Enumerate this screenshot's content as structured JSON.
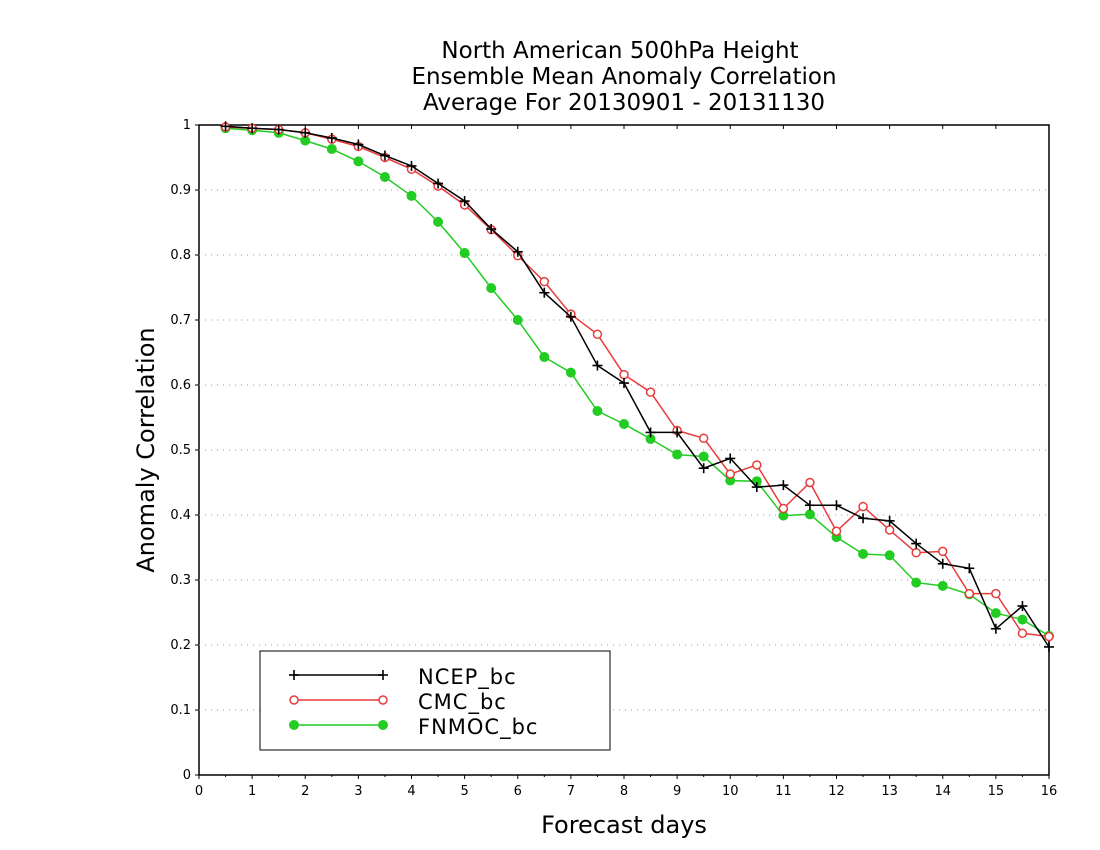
{
  "chart_data": {
    "type": "line",
    "title": [
      "North American 500hPa Height",
      "Ensemble Mean Anomaly Correlation",
      "Average For 20130901 - 20131130"
    ],
    "xlabel": "Forecast days",
    "ylabel": "Anomaly Correlation",
    "xlim": [
      0,
      16
    ],
    "ylim": [
      0,
      1
    ],
    "xticks": [
      "0",
      "1",
      "2",
      "3",
      "4",
      "5",
      "6",
      "7",
      "8",
      "9",
      "10",
      "11",
      "12",
      "13",
      "14",
      "15",
      "16"
    ],
    "yticks": [
      "0",
      "0.1",
      "0.2",
      "0.3",
      "0.4",
      "0.5",
      "0.6",
      "0.7",
      "0.8",
      "0.9",
      "1"
    ],
    "grid": "horizontal-dotted",
    "legend_position": "bottom-left",
    "x": [
      0.5,
      1,
      1.5,
      2,
      2.5,
      3,
      3.5,
      4,
      4.5,
      5,
      5.5,
      6,
      6.5,
      7,
      7.5,
      8,
      8.5,
      9,
      9.5,
      10,
      10.5,
      11,
      11.5,
      12,
      12.5,
      13,
      13.5,
      14,
      14.5,
      15,
      15.5,
      16
    ],
    "series": [
      {
        "name": "NCEP_bc",
        "color": "#000000",
        "marker": "plus",
        "values": [
          0.998,
          0.995,
          0.993,
          0.988,
          0.98,
          0.97,
          0.953,
          0.937,
          0.91,
          0.883,
          0.84,
          0.805,
          0.742,
          0.705,
          0.63,
          0.603,
          0.527,
          0.527,
          0.472,
          0.487,
          0.443,
          0.446,
          0.415,
          0.415,
          0.395,
          0.391,
          0.356,
          0.325,
          0.318,
          0.225,
          0.26,
          0.197
        ]
      },
      {
        "name": "CMC_bc",
        "color": "#e83b3b",
        "marker": "open-circle",
        "values": [
          0.997,
          0.995,
          0.993,
          0.988,
          0.978,
          0.967,
          0.95,
          0.932,
          0.906,
          0.877,
          0.839,
          0.799,
          0.759,
          0.709,
          0.678,
          0.616,
          0.589,
          0.53,
          0.518,
          0.463,
          0.477,
          0.41,
          0.45,
          0.375,
          0.413,
          0.377,
          0.342,
          0.344,
          0.279,
          0.279,
          0.218,
          0.213
        ]
      },
      {
        "name": "FNMOC_bc",
        "color": "#22cc22",
        "marker": "filled-circle",
        "values": [
          0.995,
          0.992,
          0.988,
          0.976,
          0.963,
          0.944,
          0.92,
          0.891,
          0.851,
          0.803,
          0.749,
          0.7,
          0.643,
          0.619,
          0.56,
          0.54,
          0.517,
          0.493,
          0.49,
          0.453,
          0.452,
          0.399,
          0.401,
          0.366,
          0.34,
          0.338,
          0.296,
          0.291,
          0.278,
          0.249,
          0.239,
          0.214
        ]
      }
    ]
  }
}
